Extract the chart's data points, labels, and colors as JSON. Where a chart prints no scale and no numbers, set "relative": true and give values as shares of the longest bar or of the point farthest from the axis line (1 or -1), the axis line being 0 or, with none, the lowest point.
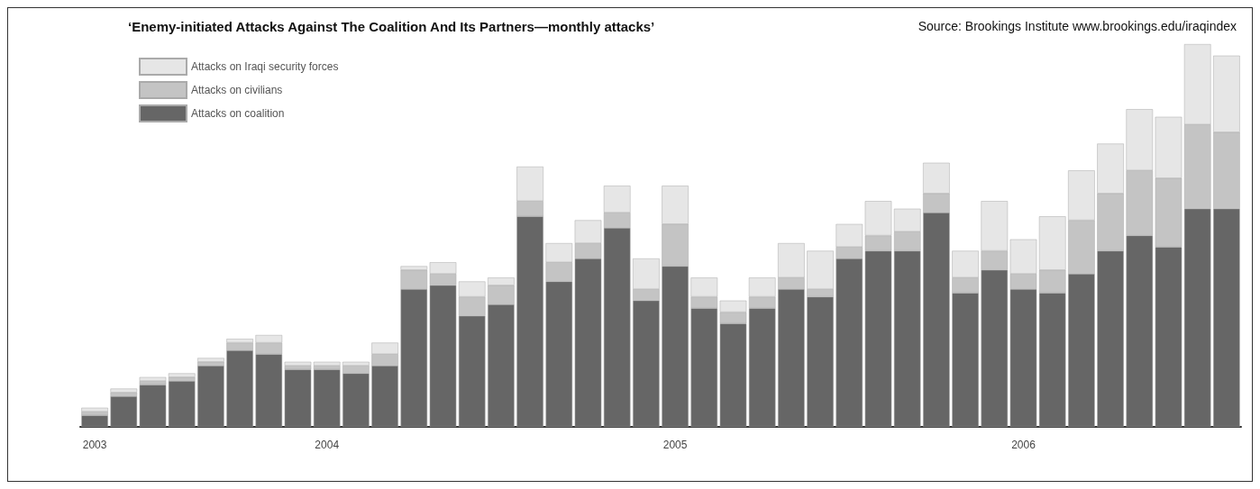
{
  "chart_data": {
    "type": "bar",
    "stacked": true,
    "relative": true,
    "title": "‘Enemy-initiated Attacks Against The Coalition And Its Partners—monthly attacks’",
    "annotations": [
      "Source: Brookings Institute www.brookings.edu/iraqindex"
    ],
    "categories": [
      "2003",
      null,
      null,
      null,
      null,
      null,
      null,
      null,
      "2004",
      null,
      null,
      null,
      null,
      null,
      null,
      null,
      null,
      null,
      null,
      null,
      "2005",
      null,
      null,
      null,
      null,
      null,
      null,
      null,
      null,
      null,
      null,
      null,
      "2006",
      null,
      null,
      null,
      null,
      null,
      null,
      null
    ],
    "series": [
      {
        "name": "Attacks on coalition",
        "color": "#666666",
        "values": [
          0.03,
          0.08,
          0.11,
          0.12,
          0.16,
          0.2,
          0.19,
          0.15,
          0.15,
          0.14,
          0.16,
          0.36,
          0.37,
          0.29,
          0.32,
          0.55,
          0.38,
          0.44,
          0.52,
          0.33,
          0.42,
          0.31,
          0.27,
          0.31,
          0.36,
          0.34,
          0.44,
          0.46,
          0.46,
          0.56,
          0.35,
          0.41,
          0.36,
          0.35,
          0.4,
          0.46,
          0.5,
          0.47,
          0.57,
          0.57
        ]
      },
      {
        "name": "Attacks on civilians",
        "color": "#c4c4c4",
        "values": [
          0.01,
          0.01,
          0.01,
          0.01,
          0.01,
          0.02,
          0.03,
          0.01,
          0.01,
          0.02,
          0.03,
          0.05,
          0.03,
          0.05,
          0.05,
          0.04,
          0.05,
          0.04,
          0.04,
          0.03,
          0.11,
          0.03,
          0.03,
          0.03,
          0.03,
          0.02,
          0.03,
          0.04,
          0.05,
          0.05,
          0.04,
          0.05,
          0.04,
          0.06,
          0.14,
          0.15,
          0.17,
          0.18,
          0.22,
          0.2
        ]
      },
      {
        "name": "Attacks on Iraqi security forces",
        "color": "#e6e6e6",
        "values": [
          0.01,
          0.01,
          0.01,
          0.01,
          0.01,
          0.01,
          0.02,
          0.01,
          0.01,
          0.01,
          0.03,
          0.01,
          0.03,
          0.04,
          0.02,
          0.09,
          0.05,
          0.06,
          0.07,
          0.08,
          0.1,
          0.05,
          0.03,
          0.05,
          0.09,
          0.1,
          0.06,
          0.09,
          0.06,
          0.08,
          0.07,
          0.13,
          0.09,
          0.14,
          0.13,
          0.13,
          0.16,
          0.16,
          0.21,
          0.2
        ]
      }
    ],
    "legend": "top left"
  }
}
